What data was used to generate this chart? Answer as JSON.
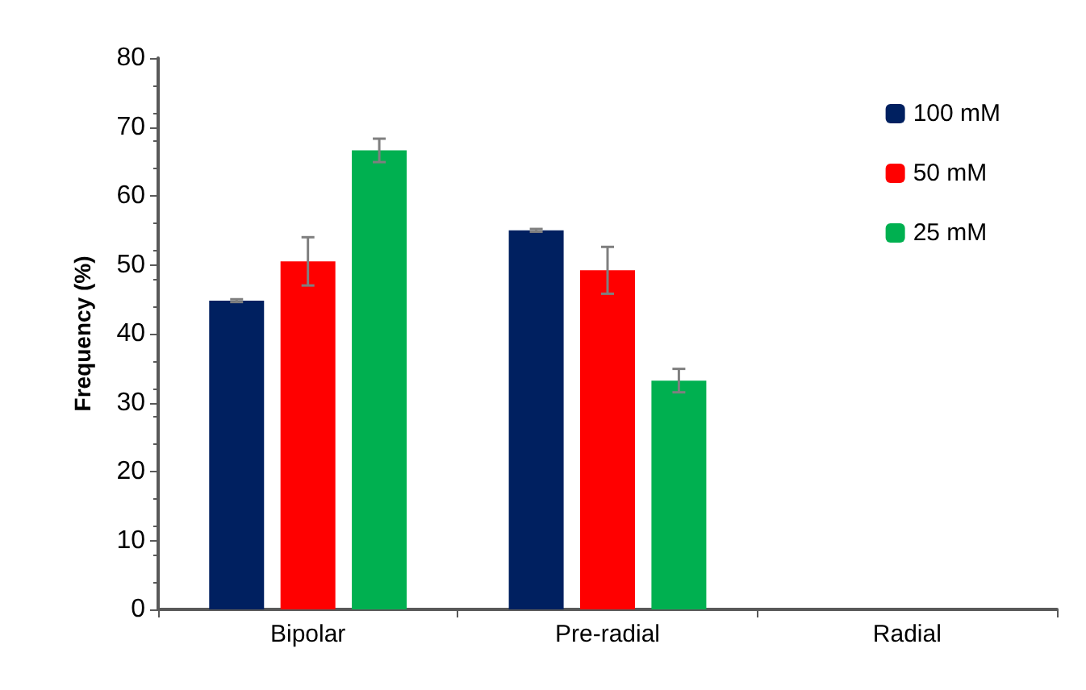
{
  "chart_data": {
    "type": "bar",
    "ylabel": "Frequency (%)",
    "categories": [
      "Bipolar",
      "Pre-radial",
      "Radial"
    ],
    "series": [
      {
        "name": "100 mM",
        "color": "#002060",
        "values": [
          44.8,
          55,
          0
        ],
        "errors": [
          0.2,
          0.2,
          null
        ]
      },
      {
        "name": "50 mM",
        "color": "#ff0000",
        "values": [
          50.5,
          49.2,
          0
        ],
        "errors": [
          3.5,
          3.4,
          null
        ]
      },
      {
        "name": "25 mM",
        "color": "#00b050",
        "values": [
          66.6,
          33.2,
          0
        ],
        "errors": [
          1.7,
          1.7,
          null
        ]
      }
    ],
    "ylim": [
      0,
      80
    ],
    "yticks": [
      0,
      10,
      20,
      30,
      40,
      50,
      60,
      70,
      80
    ],
    "grid": false,
    "legend": "top right"
  }
}
